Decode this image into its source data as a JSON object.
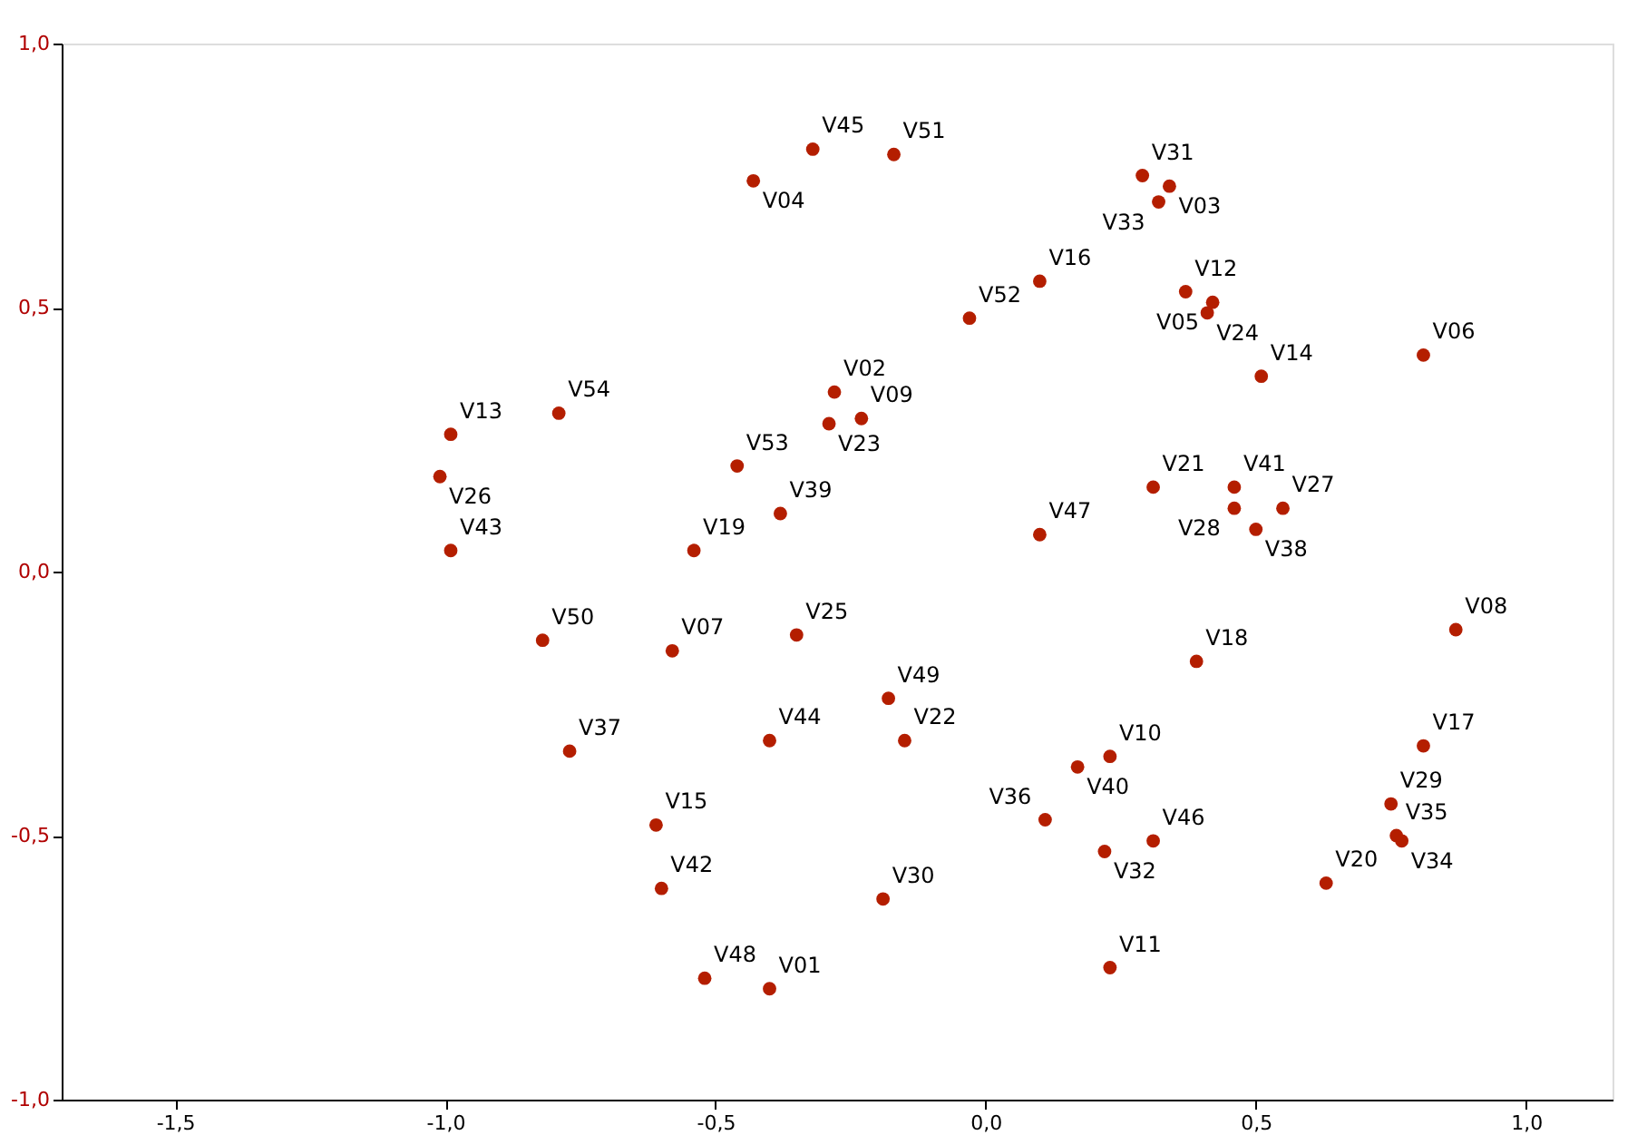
{
  "chart_data": {
    "type": "scatter",
    "x": [
      -0.32,
      -0.17,
      -0.43,
      0.29,
      0.34,
      0.32,
      0.1,
      0.37,
      0.41,
      0.42,
      -0.03,
      0.81,
      0.51,
      -0.28,
      -0.23,
      -0.29,
      -0.99,
      -0.79,
      -0.46,
      -1.01,
      0.31,
      0.46,
      0.46,
      0.55,
      -0.38,
      0.5,
      0.1,
      -0.99,
      -0.54,
      -0.82,
      -0.58,
      -0.35,
      0.87,
      0.39,
      -0.18,
      -0.77,
      -0.4,
      -0.15,
      0.81,
      0.17,
      0.23,
      0.75,
      -0.61,
      0.11,
      0.76,
      0.77,
      0.31,
      0.22,
      -0.6,
      0.63,
      -0.19,
      -0.52,
      -0.4,
      0.23
    ],
    "values": [
      0.8,
      0.79,
      0.74,
      0.75,
      0.73,
      0.7,
      0.55,
      0.53,
      0.49,
      0.51,
      0.48,
      0.41,
      0.37,
      0.34,
      0.29,
      0.28,
      0.26,
      0.3,
      0.2,
      0.18,
      0.16,
      0.16,
      0.12,
      0.12,
      0.11,
      0.08,
      0.07,
      0.04,
      0.04,
      -0.13,
      -0.15,
      -0.12,
      -0.11,
      -0.17,
      -0.24,
      -0.34,
      -0.32,
      -0.32,
      -0.33,
      -0.37,
      -0.35,
      -0.44,
      -0.48,
      -0.47,
      -0.5,
      -0.51,
      -0.51,
      -0.53,
      -0.6,
      -0.59,
      -0.62,
      -0.77,
      -0.79,
      -0.75
    ],
    "value_labels": [
      "V45",
      "V51",
      "V04",
      "V31",
      "V03",
      "V33",
      "V16",
      "V12",
      "V24",
      "V05",
      "V52",
      "V06",
      "V14",
      "V02",
      "V09",
      "V23",
      "V13",
      "V54",
      "V53",
      "V26",
      "V21",
      "V41",
      "V28",
      "V27",
      "V39",
      "V38",
      "V47",
      "V43",
      "V19",
      "V50",
      "V07",
      "V25",
      "V08",
      "V18",
      "V49",
      "V37",
      "V44",
      "V22",
      "V17",
      "V40",
      "V10",
      "V29",
      "V15",
      "V36",
      "V35",
      "V34",
      "V46",
      "V32",
      "V42",
      "V20",
      "V30",
      "V48",
      "V01",
      "V11"
    ],
    "color": "#b41e00",
    "marker": "circle",
    "xlim": [
      -1.71,
      1.16
    ],
    "ylim": [
      -1.0,
      1.0
    ],
    "xticks": [
      {
        "value": -1.5,
        "label": "-1,5"
      },
      {
        "value": -1.0,
        "label": "-1,0"
      },
      {
        "value": -0.5,
        "label": "-0,5"
      },
      {
        "value": 0.0,
        "label": "0,0"
      },
      {
        "value": 0.5,
        "label": "0,5"
      },
      {
        "value": 1.0,
        "label": "1,0"
      }
    ],
    "yticks": [
      {
        "value": -1.0,
        "label": "-1,0"
      },
      {
        "value": -0.5,
        "label": "-0,5"
      },
      {
        "value": 0.0,
        "label": "0,0"
      },
      {
        "value": 0.5,
        "label": "0,5"
      },
      {
        "value": 1.0,
        "label": "1,0"
      }
    ]
  }
}
